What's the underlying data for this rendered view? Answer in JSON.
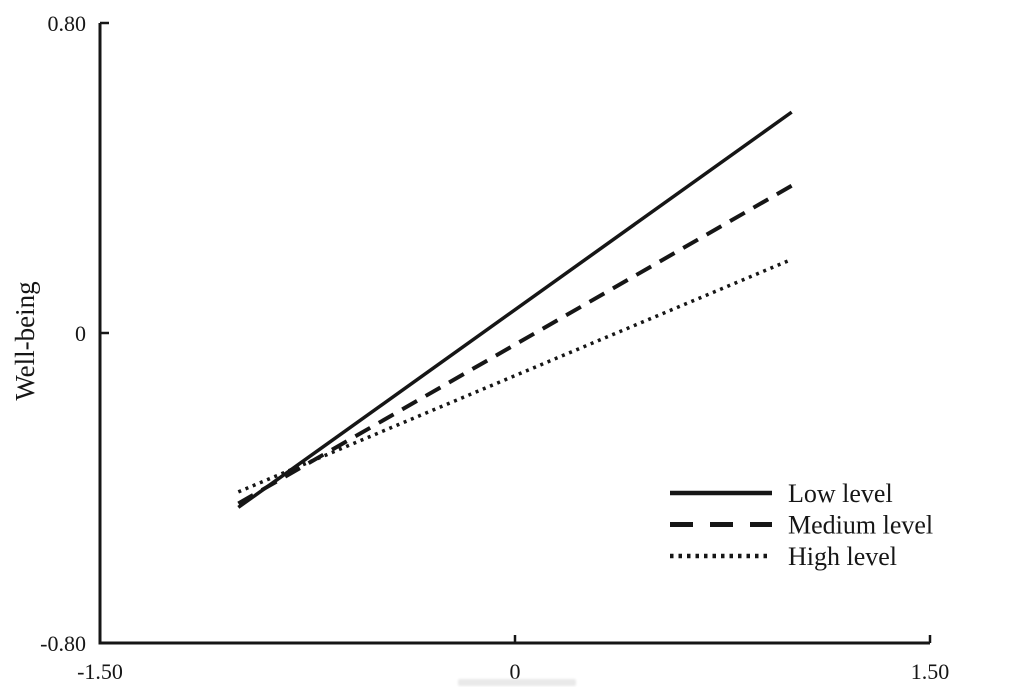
{
  "figure": {
    "background": "#ffffff",
    "ink_color": "#161616"
  },
  "chart_data": {
    "type": "line",
    "title": "",
    "xlabel": "",
    "ylabel": "Well-being",
    "xlim": [
      -1.5,
      1.5
    ],
    "ylim": [
      -0.8,
      0.8
    ],
    "grid": false,
    "x_ticks": [
      {
        "value": -1.5,
        "label": "-1.50"
      },
      {
        "value": 0,
        "label": "0"
      },
      {
        "value": 1.5,
        "label": "1.50"
      }
    ],
    "y_ticks": [
      {
        "value": 0.8,
        "label": "0.80"
      },
      {
        "value": 0,
        "label": "0"
      },
      {
        "value": -0.8,
        "label": "-0.80"
      }
    ],
    "series": [
      {
        "name": "Low level",
        "style": "solid",
        "x": [
          -1.0,
          1.0
        ],
        "y": [
          -0.45,
          0.57
        ]
      },
      {
        "name": "Medium level",
        "style": "dashed",
        "x": [
          -1.0,
          1.0
        ],
        "y": [
          -0.44,
          0.38
        ]
      },
      {
        "name": "High level",
        "style": "dotted",
        "x": [
          -1.0,
          1.0
        ],
        "y": [
          -0.41,
          0.19
        ]
      }
    ],
    "legend": {
      "position": "right-center",
      "entries": [
        "Low level",
        "Medium level",
        "High level"
      ]
    }
  }
}
